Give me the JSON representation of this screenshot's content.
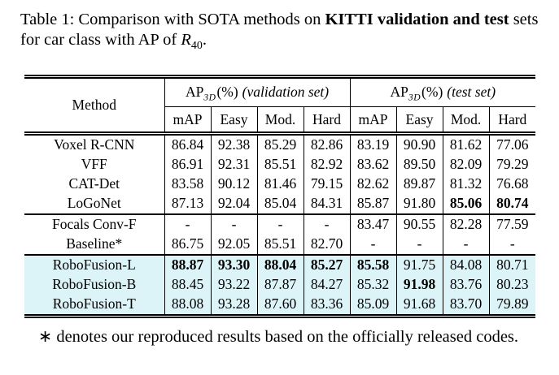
{
  "caption": {
    "part1": "Table 1: Comparison with SOTA methods on ",
    "bold": "KITTI validation and test",
    "part2": " sets for car class with AP of ",
    "math_var": "R",
    "math_sub": "40",
    "part3": "."
  },
  "table": {
    "method_header": "Method",
    "groups": [
      {
        "ap": "AP",
        "sub": "3D",
        "pct": "(%)",
        "set": "(validation set)"
      },
      {
        "ap": "AP",
        "sub": "3D",
        "pct": "(%)",
        "set": "(test set)"
      }
    ],
    "subheaders": [
      "mAP",
      "Easy",
      "Mod.",
      "Hard",
      "mAP",
      "Easy",
      "Mod.",
      "Hard"
    ],
    "highlight_color": "#dcf4f8",
    "sections": [
      {
        "highlight": false,
        "rows": [
          {
            "method": "Voxel R-CNN",
            "values": [
              {
                "v": "86.84"
              },
              {
                "v": "92.38"
              },
              {
                "v": "85.29"
              },
              {
                "v": "82.86"
              },
              {
                "v": "83.19"
              },
              {
                "v": "90.90"
              },
              {
                "v": "81.62"
              },
              {
                "v": "77.06"
              }
            ]
          },
          {
            "method": "VFF",
            "values": [
              {
                "v": "86.91"
              },
              {
                "v": "92.31"
              },
              {
                "v": "85.51"
              },
              {
                "v": "82.92"
              },
              {
                "v": "83.62"
              },
              {
                "v": "89.50"
              },
              {
                "v": "82.09"
              },
              {
                "v": "79.29"
              }
            ]
          },
          {
            "method": "CAT-Det",
            "values": [
              {
                "v": "83.58"
              },
              {
                "v": "90.12"
              },
              {
                "v": "81.46"
              },
              {
                "v": "79.15"
              },
              {
                "v": "82.62"
              },
              {
                "v": "89.87"
              },
              {
                "v": "81.32"
              },
              {
                "v": "76.68"
              }
            ]
          },
          {
            "method": "LoGoNet",
            "values": [
              {
                "v": "87.13"
              },
              {
                "v": "92.04"
              },
              {
                "v": "85.04"
              },
              {
                "v": "84.31"
              },
              {
                "v": "85.87"
              },
              {
                "v": "91.80"
              },
              {
                "v": "85.06",
                "b": true
              },
              {
                "v": "80.74",
                "b": true
              }
            ]
          }
        ]
      },
      {
        "highlight": false,
        "rows": [
          {
            "method": "Focals Conv-F",
            "values": [
              {
                "v": "-"
              },
              {
                "v": "-"
              },
              {
                "v": "-"
              },
              {
                "v": "-"
              },
              {
                "v": "83.47"
              },
              {
                "v": "90.55"
              },
              {
                "v": "82.28"
              },
              {
                "v": "77.59"
              }
            ]
          },
          {
            "method": "Baseline*",
            "values": [
              {
                "v": "86.75"
              },
              {
                "v": "92.05"
              },
              {
                "v": "85.51"
              },
              {
                "v": "82.70"
              },
              {
                "v": "-"
              },
              {
                "v": "-"
              },
              {
                "v": "-"
              },
              {
                "v": "-"
              }
            ]
          }
        ]
      },
      {
        "highlight": true,
        "rows": [
          {
            "method": "RoboFusion-L",
            "values": [
              {
                "v": "88.87",
                "b": true
              },
              {
                "v": "93.30",
                "b": true
              },
              {
                "v": "88.04",
                "b": true
              },
              {
                "v": "85.27",
                "b": true
              },
              {
                "v": "85.58",
                "b": true
              },
              {
                "v": "91.75"
              },
              {
                "v": "84.08"
              },
              {
                "v": "80.71"
              }
            ]
          },
          {
            "method": "RoboFusion-B",
            "values": [
              {
                "v": "88.45"
              },
              {
                "v": "93.22"
              },
              {
                "v": "87.87"
              },
              {
                "v": "84.27"
              },
              {
                "v": "85.32"
              },
              {
                "v": "91.98",
                "b": true
              },
              {
                "v": "83.76"
              },
              {
                "v": "80.23"
              }
            ]
          },
          {
            "method": "RoboFusion-T",
            "values": [
              {
                "v": "88.08"
              },
              {
                "v": "93.28"
              },
              {
                "v": "87.60"
              },
              {
                "v": "83.36"
              },
              {
                "v": "85.09"
              },
              {
                "v": "91.68"
              },
              {
                "v": "83.70"
              },
              {
                "v": "79.89"
              }
            ]
          }
        ]
      }
    ]
  },
  "footnote": {
    "marker": "∗",
    "text": "denotes our reproduced results based on the officially released codes."
  }
}
